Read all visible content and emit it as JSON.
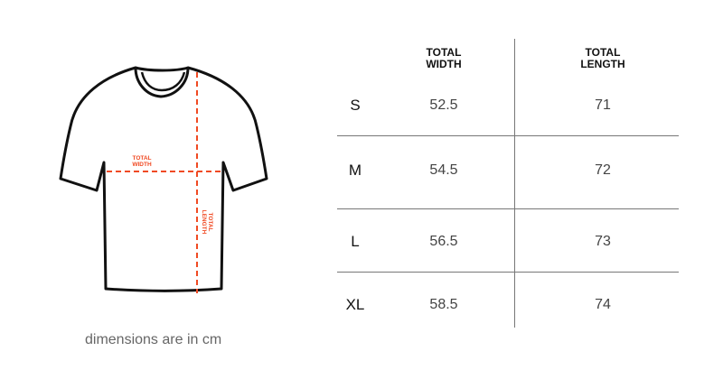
{
  "diagram": {
    "width_label": [
      "TOTAL",
      "WIDTH"
    ],
    "length_label": [
      "TOTAL",
      "LENGTH"
    ],
    "accent_color": "#f04a23"
  },
  "table": {
    "headers": {
      "width": [
        "TOTAL",
        "WIDTH"
      ],
      "length": [
        "TOTAL",
        "LENGTH"
      ]
    },
    "rows": [
      {
        "size": "S",
        "width": "52.5",
        "length": "71"
      },
      {
        "size": "M",
        "width": "54.5",
        "length": "72"
      },
      {
        "size": "L",
        "width": "56.5",
        "length": "73"
      },
      {
        "size": "XL",
        "width": "58.5",
        "length": "74"
      }
    ]
  },
  "note": "dimensions are in cm"
}
